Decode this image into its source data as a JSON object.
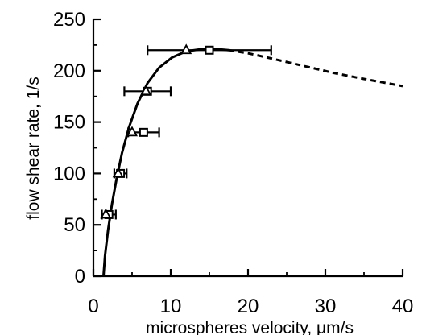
{
  "chart_data": {
    "type": "scatter",
    "title": "",
    "xlabel": "microspheres velocity, μm/s",
    "ylabel": "flow shear rate, 1/s",
    "xlim": [
      0,
      40
    ],
    "ylim": [
      0,
      250
    ],
    "x_ticks": [
      0,
      10,
      20,
      30,
      40
    ],
    "y_ticks": [
      0,
      50,
      100,
      150,
      200,
      250
    ],
    "x_tick_labels": [
      "0",
      "10",
      "20",
      "30",
      "40"
    ],
    "y_tick_labels": [
      "0",
      "50",
      "100",
      "150",
      "200",
      "250"
    ],
    "grid": false,
    "legend": "none",
    "series": [
      {
        "marker": "square",
        "points": [
          {
            "x": 2.0,
            "y": 60,
            "x_err": 0.9
          },
          {
            "x": 3.5,
            "y": 100,
            "x_err": 0.8
          },
          {
            "x": 6.5,
            "y": 140,
            "x_err": 2.0
          },
          {
            "x": 7.0,
            "y": 180,
            "x_err": 3.0
          },
          {
            "x": 15.0,
            "y": 220,
            "x_err": 8.0
          }
        ]
      },
      {
        "marker": "triangle",
        "points": [
          {
            "x": 1.6,
            "y": 60
          },
          {
            "x": 3.2,
            "y": 100
          },
          {
            "x": 5.0,
            "y": 140
          },
          {
            "x": 6.8,
            "y": 180
          },
          {
            "x": 12.0,
            "y": 220
          }
        ]
      }
    ],
    "fit_curve": {
      "style": "solid",
      "points": [
        [
          1.3,
          0
        ],
        [
          1.5,
          20
        ],
        [
          1.9,
          45
        ],
        [
          2.4,
          70
        ],
        [
          3.0,
          95
        ],
        [
          3.7,
          120
        ],
        [
          4.6,
          145
        ],
        [
          5.7,
          168
        ],
        [
          7.0,
          188
        ],
        [
          8.5,
          203
        ],
        [
          10.2,
          213
        ],
        [
          12.0,
          219
        ],
        [
          14.0,
          221
        ],
        [
          16.0,
          221
        ],
        [
          17.5,
          220
        ]
      ]
    },
    "extrapolation": {
      "style": "dashed",
      "points": [
        [
          17.5,
          220
        ],
        [
          20.0,
          217
        ],
        [
          23.0,
          212
        ],
        [
          27.0,
          205
        ],
        [
          31.0,
          198
        ],
        [
          35.0,
          192
        ],
        [
          40.0,
          185
        ]
      ]
    }
  }
}
